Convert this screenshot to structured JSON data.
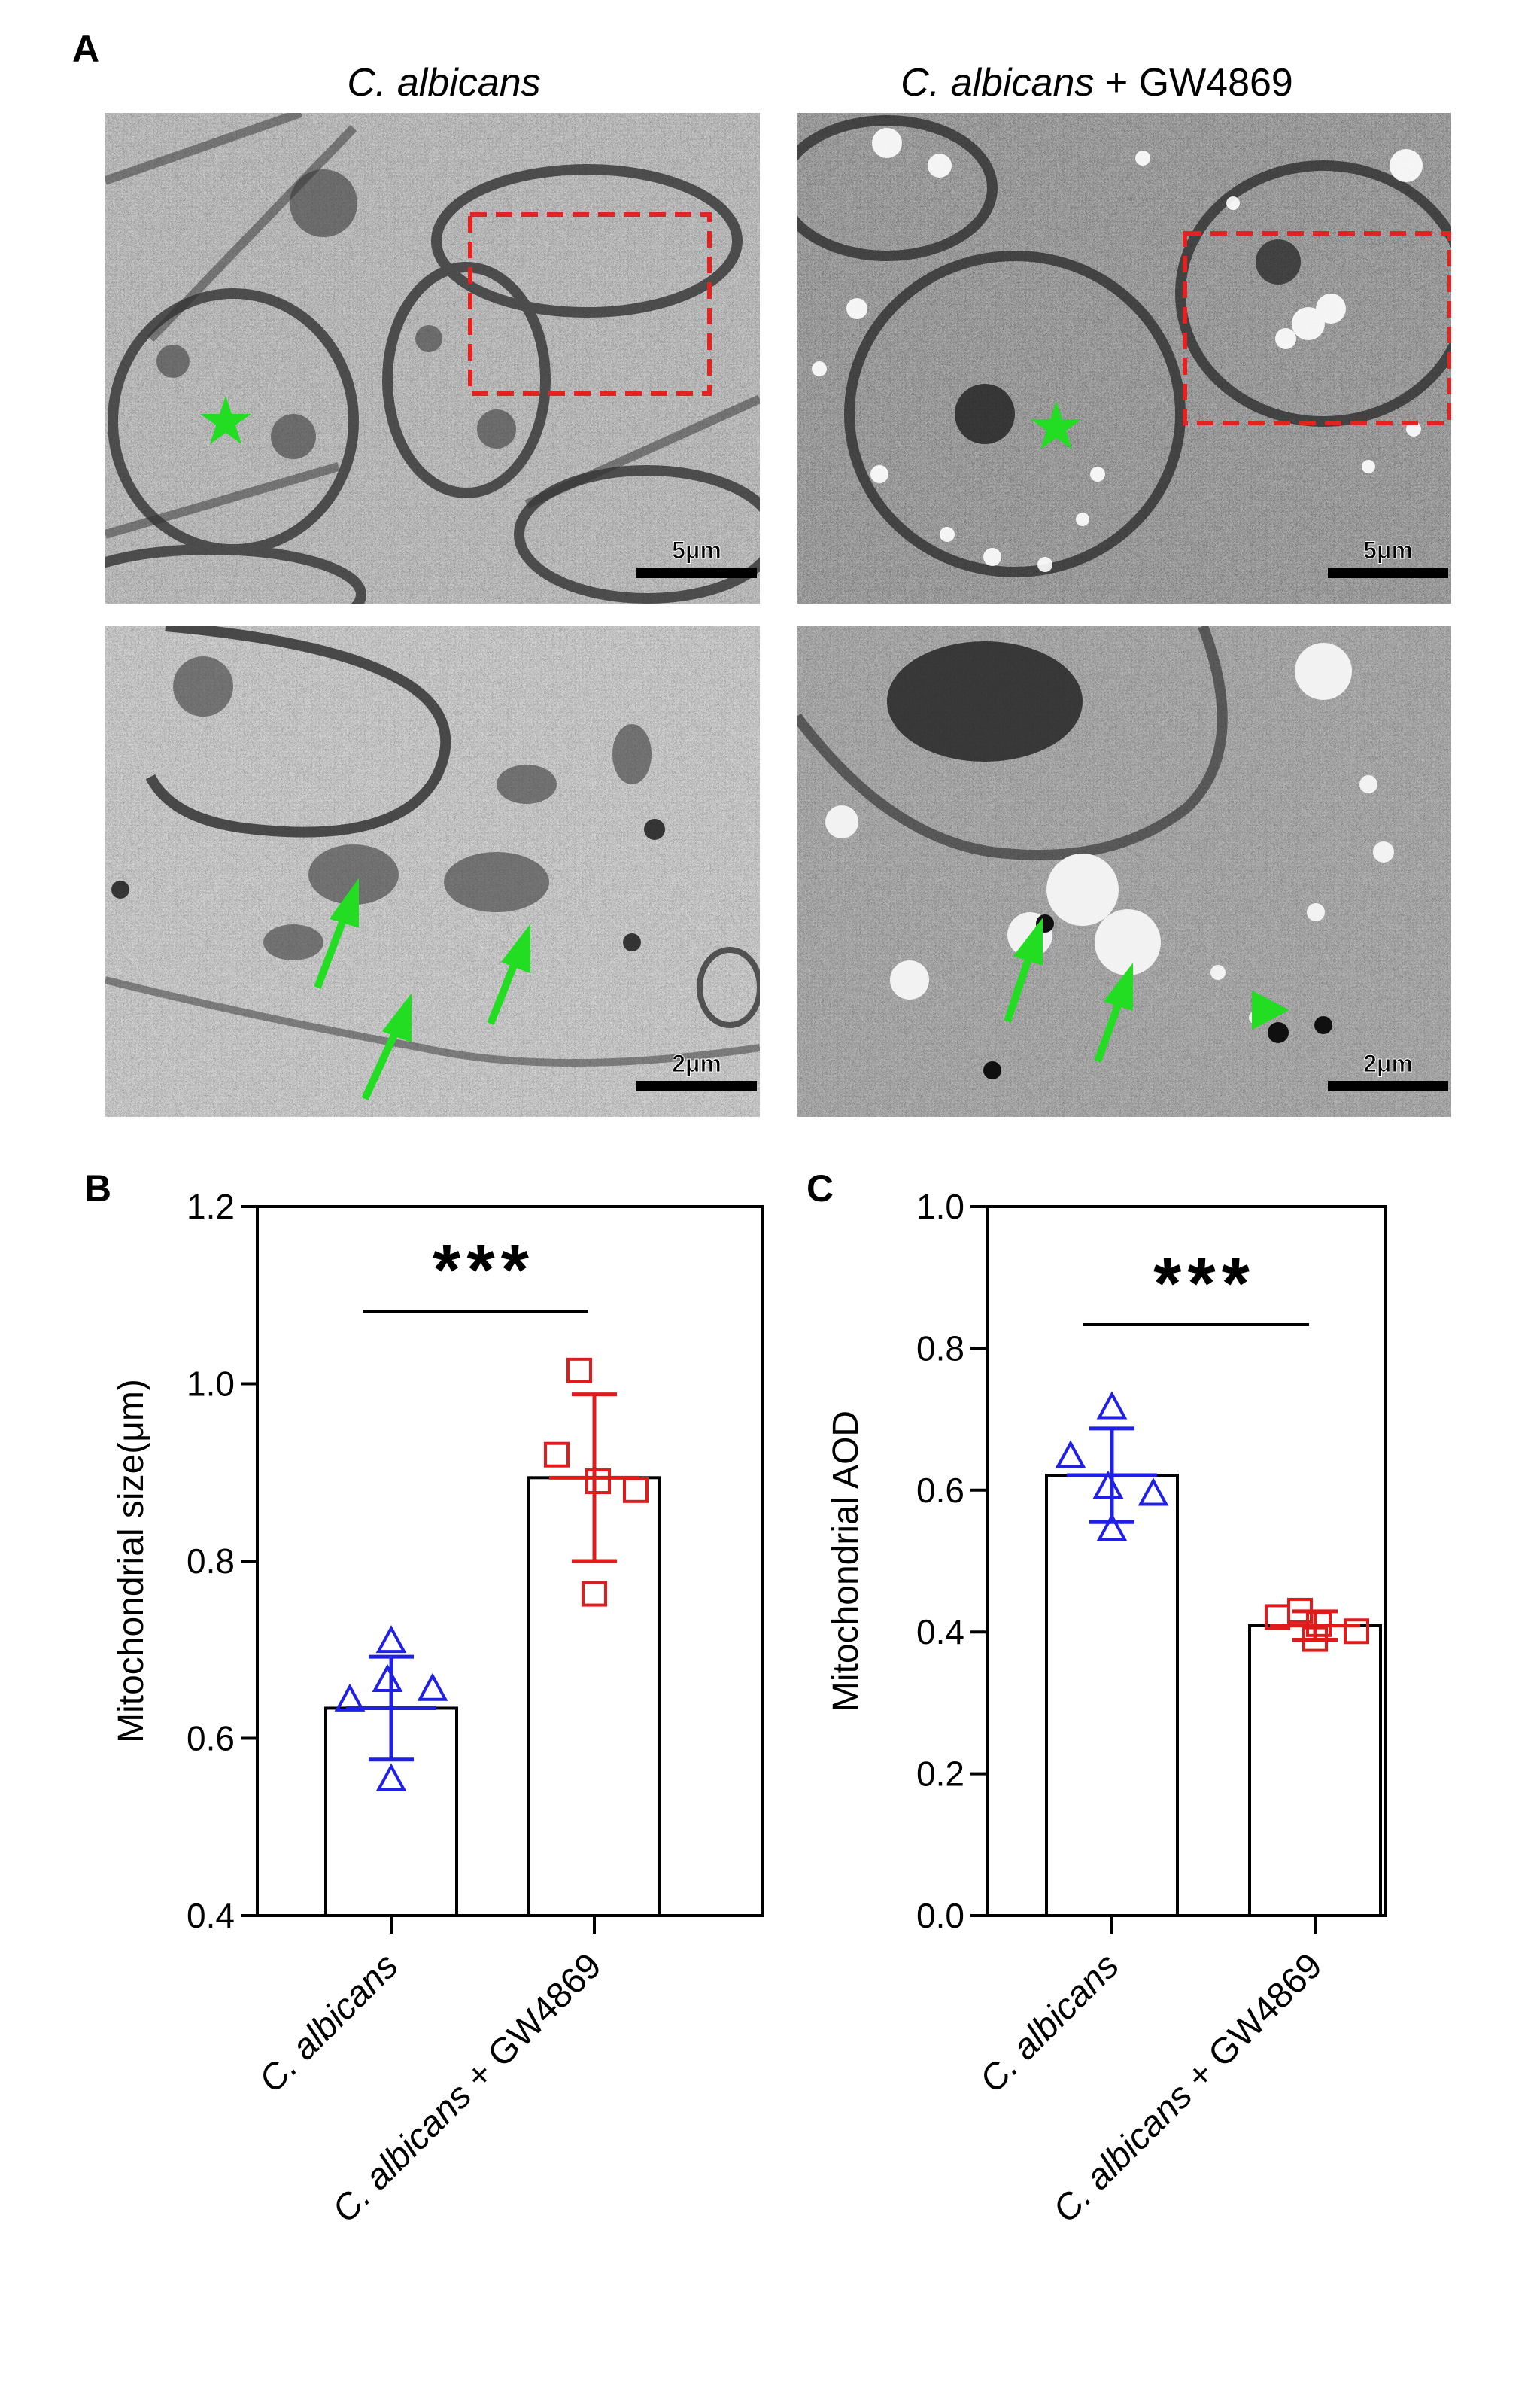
{
  "panel_a": {
    "letter": "A",
    "columns": [
      {
        "title_italic": "C. albicans",
        "title_rest": ""
      },
      {
        "title_italic": "C. albicans",
        "title_rest": " + GW4869"
      }
    ],
    "scale_bars": {
      "top_left": "5μm",
      "top_right": "5μm",
      "bottom_left": "2μm",
      "bottom_right": "2μm"
    },
    "colors": {
      "marker": "#22dd22",
      "inset_box": "#e32222",
      "scale_bar": "#000000"
    }
  },
  "chart_data": [
    {
      "panel": "B",
      "type": "bar",
      "categories": [
        "C. albicans",
        "C. albicans + GW4869"
      ],
      "category_italic": [
        "C. albicans",
        "C. albicans"
      ],
      "category_rest": [
        "",
        " + GW4869"
      ],
      "values": [
        0.634,
        0.894
      ],
      "error": [
        0.058,
        0.094
      ],
      "points": [
        [
          0.709,
          0.643,
          0.665,
          0.655,
          0.553
        ],
        [
          1.015,
          0.92,
          0.89,
          0.88,
          0.763
        ]
      ],
      "markers": [
        "triangle",
        "square"
      ],
      "point_colors": [
        "#1f1fe6",
        "#e01b1b"
      ],
      "ylabel": "Mitochondrial size(μm)",
      "ylim": [
        0.4,
        1.2
      ],
      "yticks": [
        "0.4",
        "0.6",
        "0.8",
        "1.0",
        "1.2"
      ],
      "significance": "***"
    },
    {
      "panel": "C",
      "type": "bar",
      "categories": [
        "C. albicans",
        "C. albicans + GW4869"
      ],
      "category_italic": [
        "C. albicans",
        "C. albicans"
      ],
      "category_rest": [
        "",
        " + GW4869"
      ],
      "values": [
        0.621,
        0.409
      ],
      "error": [
        0.066,
        0.02
      ],
      "points": [
        [
          0.716,
          0.647,
          0.604,
          0.594,
          0.544
        ],
        [
          0.43,
          0.421,
          0.411,
          0.401,
          0.39
        ]
      ],
      "markers": [
        "triangle",
        "square"
      ],
      "point_colors": [
        "#1f1fe6",
        "#e01b1b"
      ],
      "ylabel": "Mitochondrial AOD",
      "ylim": [
        0.0,
        1.0
      ],
      "yticks": [
        "0.0",
        "0.2",
        "0.4",
        "0.6",
        "0.8",
        "1.0"
      ],
      "significance": "***"
    }
  ]
}
